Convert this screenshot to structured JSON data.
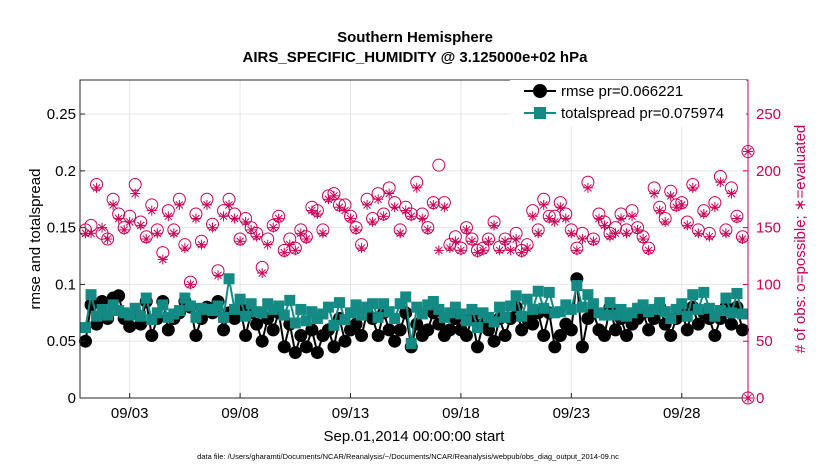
{
  "chart_data": {
    "type": "line",
    "title": "Southern Hemisphere",
    "subtitle": "AIRS_SPECIFIC_HUMIDITY @ 3.125000e+02 hPa",
    "xlabel": "Sep.01,2014 00:00:00 start",
    "ylabel_left": "rmse and totalspread",
    "ylabel_right": "# of obs: o=possible; ∗=evaluated",
    "footer": "data file: /Users/gharamti/Documents/NCAR/Reanalysis/~/Documents/NCAR/Reanalysis/webpub/obs_diag_output_2014-09.nc",
    "xlim": [
      0.75,
      31.0
    ],
    "ylim_left": [
      0,
      0.28
    ],
    "ylim_right": [
      0,
      280
    ],
    "x_ticks": [
      {
        "value": 3,
        "label": "09/03"
      },
      {
        "value": 8,
        "label": "09/08"
      },
      {
        "value": 13,
        "label": "09/13"
      },
      {
        "value": 18,
        "label": "09/18"
      },
      {
        "value": 23,
        "label": "09/23"
      },
      {
        "value": 28,
        "label": "09/28"
      }
    ],
    "y_ticks_left": [
      {
        "value": 0,
        "label": "0"
      },
      {
        "value": 0.05,
        "label": "0.05"
      },
      {
        "value": 0.1,
        "label": "0.1"
      },
      {
        "value": 0.15,
        "label": "0.15"
      },
      {
        "value": 0.2,
        "label": "0.2"
      },
      {
        "value": 0.25,
        "label": "0.25"
      }
    ],
    "y_ticks_right": [
      {
        "value": 0,
        "label": "0"
      },
      {
        "value": 50,
        "label": "50"
      },
      {
        "value": 100,
        "label": "100"
      },
      {
        "value": 150,
        "label": "150"
      },
      {
        "value": 200,
        "label": "200"
      },
      {
        "value": 250,
        "label": "250"
      }
    ],
    "legend": [
      {
        "label": "rmse pr=0.066221",
        "color": "#000000",
        "marker": "circle"
      },
      {
        "label": "totalspread pr=0.075974",
        "color": "#138a84",
        "marker": "square"
      }
    ],
    "colors": {
      "rmse": "#000000",
      "spread": "#138a84",
      "obs": "#cc0055",
      "grid": "#e6e6e6"
    },
    "x": [
      1.0,
      1.25,
      1.5,
      1.75,
      2.0,
      2.25,
      2.5,
      2.75,
      3.0,
      3.25,
      3.5,
      3.75,
      4.0,
      4.25,
      4.5,
      4.75,
      5.0,
      5.25,
      5.5,
      5.75,
      6.0,
      6.25,
      6.5,
      6.75,
      7.0,
      7.25,
      7.5,
      7.75,
      8.0,
      8.25,
      8.5,
      8.75,
      9.0,
      9.25,
      9.5,
      9.75,
      10.0,
      10.25,
      10.5,
      10.75,
      11.0,
      11.25,
      11.5,
      11.75,
      12.0,
      12.25,
      12.5,
      12.75,
      13.0,
      13.25,
      13.5,
      13.75,
      14.0,
      14.25,
      14.5,
      14.75,
      15.0,
      15.25,
      15.5,
      15.75,
      16.0,
      16.25,
      16.5,
      16.75,
      17.0,
      17.25,
      17.5,
      17.75,
      18.0,
      18.25,
      18.5,
      18.75,
      19.0,
      19.25,
      19.5,
      19.75,
      20.0,
      20.25,
      20.5,
      20.75,
      21.0,
      21.25,
      21.5,
      21.75,
      22.0,
      22.25,
      22.5,
      22.75,
      23.0,
      23.25,
      23.5,
      23.75,
      24.0,
      24.25,
      24.5,
      24.75,
      25.0,
      25.25,
      25.5,
      25.75,
      26.0,
      26.25,
      26.5,
      26.75,
      27.0,
      27.25,
      27.5,
      27.75,
      28.0,
      28.25,
      28.5,
      28.75,
      29.0,
      29.25,
      29.5,
      29.75,
      30.0,
      30.25,
      30.5,
      30.75
    ],
    "series": [
      {
        "name": "rmse",
        "values": [
          0.05,
          0.082,
          0.065,
          0.085,
          0.07,
          0.088,
          0.09,
          0.07,
          0.063,
          0.075,
          0.065,
          0.085,
          0.055,
          0.07,
          0.085,
          0.06,
          0.07,
          0.075,
          0.085,
          0.08,
          0.055,
          0.07,
          0.08,
          0.075,
          0.085,
          0.06,
          0.075,
          0.07,
          0.08,
          0.055,
          0.075,
          0.065,
          0.05,
          0.07,
          0.06,
          0.075,
          0.045,
          0.065,
          0.04,
          0.055,
          0.045,
          0.06,
          0.04,
          0.055,
          0.06,
          0.045,
          0.07,
          0.05,
          0.06,
          0.065,
          0.055,
          0.075,
          0.07,
          0.055,
          0.075,
          0.06,
          0.05,
          0.06,
          0.075,
          0.045,
          0.065,
          0.055,
          0.06,
          0.075,
          0.065,
          0.055,
          0.06,
          0.07,
          0.06,
          0.055,
          0.07,
          0.045,
          0.065,
          0.06,
          0.05,
          0.07,
          0.055,
          0.07,
          0.08,
          0.06,
          0.07,
          0.065,
          0.075,
          0.055,
          0.075,
          0.045,
          0.055,
          0.065,
          0.06,
          0.105,
          0.045,
          0.07,
          0.075,
          0.06,
          0.055,
          0.08,
          0.06,
          0.07,
          0.055,
          0.065,
          0.07,
          0.075,
          0.06,
          0.07,
          0.08,
          0.065,
          0.055,
          0.07,
          0.075,
          0.06,
          0.08,
          0.065,
          0.075,
          0.07,
          0.055,
          0.07,
          0.08,
          0.065,
          0.08,
          0.06
        ],
        "color": "#000000"
      },
      {
        "name": "totalspread",
        "values": [
          0.062,
          0.091,
          0.072,
          0.078,
          0.073,
          0.082,
          0.077,
          0.075,
          0.073,
          0.079,
          0.072,
          0.088,
          0.069,
          0.075,
          0.082,
          0.071,
          0.074,
          0.077,
          0.088,
          0.081,
          0.071,
          0.079,
          0.078,
          0.077,
          0.081,
          0.071,
          0.105,
          0.078,
          0.087,
          0.072,
          0.083,
          0.076,
          0.075,
          0.083,
          0.078,
          0.081,
          0.073,
          0.086,
          0.066,
          0.078,
          0.068,
          0.076,
          0.07,
          0.074,
          0.08,
          0.064,
          0.084,
          0.069,
          0.075,
          0.082,
          0.073,
          0.08,
          0.083,
          0.071,
          0.083,
          0.076,
          0.07,
          0.083,
          0.089,
          0.048,
          0.08,
          0.074,
          0.082,
          0.085,
          0.078,
          0.071,
          0.075,
          0.08,
          0.074,
          0.068,
          0.078,
          0.062,
          0.075,
          0.071,
          0.067,
          0.08,
          0.071,
          0.081,
          0.09,
          0.072,
          0.087,
          0.078,
          0.094,
          0.079,
          0.093,
          0.075,
          0.076,
          0.082,
          0.078,
          0.099,
          0.08,
          0.091,
          0.083,
          0.075,
          0.073,
          0.084,
          0.073,
          0.078,
          0.072,
          0.075,
          0.079,
          0.082,
          0.076,
          0.078,
          0.084,
          0.076,
          0.07,
          0.078,
          0.083,
          0.072,
          0.091,
          0.078,
          0.093,
          0.079,
          0.072,
          0.077,
          0.088,
          0.075,
          0.092,
          0.074
        ],
        "color": "#138a84"
      },
      {
        "name": "possible",
        "marker": "circle-open",
        "values": [
          148,
          152,
          188,
          145,
          140,
          175,
          162,
          150,
          160,
          188,
          155,
          142,
          170,
          148,
          128,
          165,
          148,
          175,
          135,
          102,
          162,
          138,
          175,
          153,
          112,
          165,
          175,
          162,
          140,
          158,
          150,
          145,
          115,
          140,
          152,
          160,
          130,
          140,
          132,
          148,
          142,
          168,
          165,
          148,
          178,
          180,
          170,
          170,
          160,
          150,
          135,
          175,
          158,
          180,
          162,
          185,
          172,
          148,
          168,
          162,
          190,
          162,
          150,
          172,
          205,
          172,
          135,
          142,
          132,
          150,
          140,
          130,
          132,
          140,
          155,
          133,
          140,
          135,
          145,
          130,
          135,
          165,
          148,
          175,
          160,
          160,
          172,
          162,
          148,
          132,
          145,
          190,
          140,
          162,
          155,
          145,
          150,
          162,
          148,
          165,
          150,
          142,
          132,
          185,
          168,
          158,
          182,
          170,
          172,
          155,
          188,
          148,
          165,
          145,
          172,
          195,
          148,
          185,
          160,
          142
        ],
        "color": "#cc0055"
      },
      {
        "name": "evaluated",
        "marker": "star",
        "values": [
          145,
          145,
          185,
          150,
          140,
          170,
          158,
          148,
          155,
          180,
          152,
          140,
          165,
          145,
          122,
          160,
          145,
          170,
          132,
          100,
          158,
          135,
          170,
          150,
          108,
          160,
          170,
          158,
          138,
          155,
          148,
          142,
          110,
          135,
          150,
          158,
          128,
          135,
          130,
          145,
          140,
          165,
          162,
          145,
          175,
          178,
          168,
          165,
          158,
          148,
          132,
          170,
          155,
          175,
          160,
          180,
          168,
          145,
          165,
          160,
          185,
          158,
          148,
          170,
          130,
          168,
          132,
          138,
          130,
          148,
          138,
          128,
          130,
          138,
          152,
          130,
          138,
          130,
          140,
          128,
          132,
          160,
          145,
          170,
          158,
          155,
          168,
          158,
          145,
          130,
          140,
          185,
          138,
          158,
          152,
          142,
          145,
          158,
          145,
          160,
          148,
          140,
          130,
          180,
          165,
          155,
          178,
          168,
          170,
          152,
          185,
          145,
          162,
          142,
          168,
          190,
          145,
          180,
          158,
          140
        ],
        "color": "#cc0055"
      }
    ],
    "annotations": [
      {
        "type": "outlier",
        "x": 31.0,
        "value": 217,
        "series": "possible"
      },
      {
        "type": "outlier",
        "x": 31.0,
        "value": 0,
        "series": "possible"
      }
    ]
  }
}
